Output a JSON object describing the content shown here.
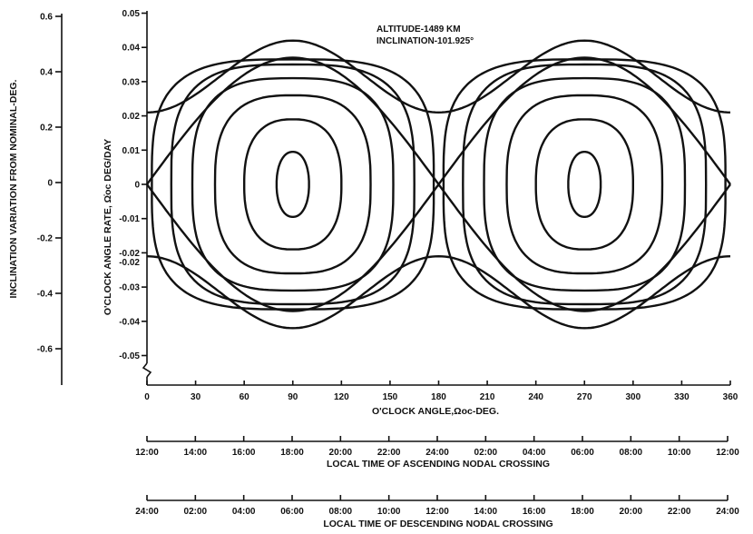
{
  "chart_data": {
    "type": "line",
    "title": "",
    "annotations": [
      "ALTITUDE-1489 KM",
      "INCLINATION-101.925°"
    ],
    "xlabel": "O'CLOCK ANGLE,Ωoc-DEG.",
    "ylabel": "O'CLOCK ANGLE RATE, Ω̇oc DEG/DAY",
    "y2label": "INCLINATION VARIATION FROM NOMINAL-DEG.",
    "xlim": [
      0,
      360
    ],
    "ylim": [
      -0.05,
      0.05
    ],
    "x_ticks": [
      "0",
      "30",
      "60",
      "90",
      "120",
      "150",
      "180",
      "210",
      "240",
      "270",
      "300",
      "330",
      "360"
    ],
    "y_ticks": [
      "0.05",
      "0.04",
      "0.03",
      "0.02",
      "0.01",
      "0",
      "-0.01",
      "-0.02",
      "-0.02",
      "-0.03",
      "-0.04",
      "-0.05"
    ],
    "y2_ticks": [
      "0.6",
      "0.4",
      "0.2",
      "0",
      "-0.2",
      "-0.4",
      "-0.6"
    ],
    "y2_values": [
      0.6,
      0.4,
      0.2,
      0,
      -0.2,
      -0.4,
      -0.6
    ],
    "time_axes": [
      {
        "label": "LOCAL TIME OF ASCENDING NODAL CROSSING",
        "ticks": [
          "12:00",
          "14:00",
          "16:00",
          "18:00",
          "20:00",
          "22:00",
          "24:00",
          "02:00",
          "04:00",
          "06:00",
          "08:00",
          "10:00",
          "12:00"
        ]
      },
      {
        "label": "LOCAL TIME OF DESCENDING NODAL CROSSING",
        "ticks": [
          "24:00",
          "02:00",
          "04:00",
          "06:00",
          "08:00",
          "10:00",
          "12:00",
          "14:00",
          "16:00",
          "18:00",
          "20:00",
          "22:00",
          "24:00"
        ]
      }
    ],
    "grid": false,
    "legend": "none",
    "series": [
      {
        "kind": "orbit",
        "center": [
          90,
          0
        ],
        "x_half_width": 10,
        "y_half_height": 0.0095
      },
      {
        "kind": "orbit",
        "center": [
          90,
          0
        ],
        "x_half_width": 30,
        "y_half_height": 0.019
      },
      {
        "kind": "orbit",
        "center": [
          90,
          0
        ],
        "x_half_width": 48,
        "y_half_height": 0.026
      },
      {
        "kind": "orbit",
        "center": [
          90,
          0
        ],
        "x_half_width": 62,
        "y_half_height": 0.031
      },
      {
        "kind": "orbit",
        "center": [
          90,
          0
        ],
        "x_half_width": 75,
        "y_half_height": 0.035
      },
      {
        "kind": "orbit",
        "center": [
          90,
          0
        ],
        "x_half_width": 87,
        "y_half_height": 0.0365
      },
      {
        "kind": "orbit",
        "center": [
          270,
          0
        ],
        "x_half_width": 10,
        "y_half_height": 0.0095
      },
      {
        "kind": "orbit",
        "center": [
          270,
          0
        ],
        "x_half_width": 30,
        "y_half_height": 0.019
      },
      {
        "kind": "orbit",
        "center": [
          270,
          0
        ],
        "x_half_width": 48,
        "y_half_height": 0.026
      },
      {
        "kind": "orbit",
        "center": [
          270,
          0
        ],
        "x_half_width": 62,
        "y_half_height": 0.031
      },
      {
        "kind": "orbit",
        "center": [
          270,
          0
        ],
        "x_half_width": 75,
        "y_half_height": 0.035
      },
      {
        "kind": "orbit",
        "center": [
          270,
          0
        ],
        "x_half_width": 87,
        "y_half_height": 0.0365
      },
      {
        "kind": "separatrix",
        "amplitude": 0.037
      },
      {
        "kind": "circulating",
        "mean": 0.0315,
        "amplitude": 0.0105
      },
      {
        "kind": "circulating",
        "mean": -0.0315,
        "amplitude": 0.0105
      }
    ]
  }
}
